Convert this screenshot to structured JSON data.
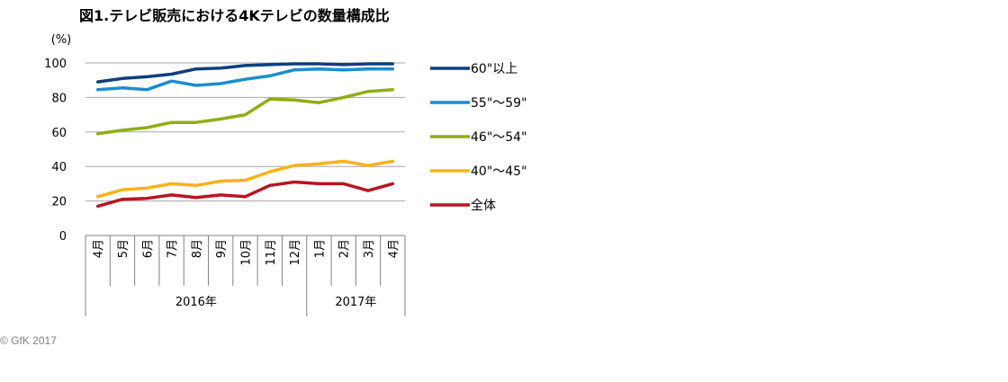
{
  "chart_data": {
    "type": "line",
    "title": "図1.テレビ販売における4Kテレビの数量構成比",
    "ylabel": "(%)",
    "xlabel": "",
    "ylim": [
      0,
      100
    ],
    "yticks": [
      "0",
      "20",
      "40",
      "60",
      "80",
      "100"
    ],
    "grid": true,
    "legend_position": "right",
    "categories": [
      "4月",
      "5月",
      "6月",
      "7月",
      "8月",
      "9月",
      "10月",
      "11月",
      "12月",
      "1月",
      "2月",
      "3月",
      "4月"
    ],
    "year_groups": [
      {
        "label": "2016年",
        "count": 9
      },
      {
        "label": "2017年",
        "count": 4
      }
    ],
    "series": [
      {
        "name": "60\"以上",
        "color": "#0d3f7f",
        "values": [
          89,
          91,
          92,
          93.5,
          96.5,
          97,
          98.5,
          99,
          99.5,
          99.5,
          99,
          99.5,
          99.5
        ]
      },
      {
        "name": "55\"～59\"",
        "color": "#1a8dd0",
        "values": [
          84.5,
          85.5,
          84.5,
          89.5,
          87,
          88,
          90.5,
          92.5,
          96,
          96.5,
          96,
          96.5,
          96.5
        ]
      },
      {
        "name": "46\"～54\"",
        "color": "#8fad15",
        "values": [
          59,
          61,
          62.5,
          65.5,
          65.5,
          67.5,
          70,
          79,
          78.5,
          77,
          80,
          83.5,
          84.5
        ]
      },
      {
        "name": "40\"～45\"",
        "color": "#fbb216",
        "values": [
          22.5,
          26.5,
          27.5,
          30,
          29,
          31.5,
          32,
          37,
          40.5,
          41.5,
          43,
          40.5,
          43
        ]
      },
      {
        "name": "全体",
        "color": "#b81522",
        "values": [
          17,
          21,
          21.5,
          23.5,
          22,
          23.5,
          22.5,
          29,
          31,
          30,
          30,
          26,
          30
        ]
      }
    ]
  },
  "copyright": "© GfK 2017"
}
